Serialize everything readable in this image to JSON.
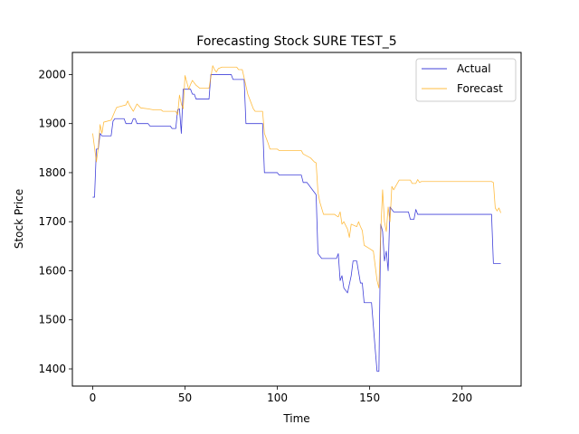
{
  "chart_data": {
    "type": "line",
    "title": "Forecasting Stock SURE TEST_5",
    "xlabel": "Time",
    "ylabel": "Stock Price",
    "xlim": [
      -11,
      232
    ],
    "ylim": [
      1365,
      2045
    ],
    "xticks": [
      0,
      50,
      100,
      150,
      200
    ],
    "yticks": [
      1400,
      1500,
      1600,
      1700,
      1800,
      1900,
      2000
    ],
    "grid": false,
    "legend": "top-right",
    "series": [
      {
        "name": "Actual",
        "color": "#0000cc",
        "points": [
          [
            0,
            1750
          ],
          [
            1,
            1750
          ],
          [
            2,
            1848
          ],
          [
            3,
            1848
          ],
          [
            4,
            1880
          ],
          [
            5,
            1875
          ],
          [
            7,
            1875
          ],
          [
            10,
            1875
          ],
          [
            11,
            1905
          ],
          [
            12,
            1910
          ],
          [
            17,
            1910
          ],
          [
            18,
            1900
          ],
          [
            21,
            1900
          ],
          [
            22,
            1910
          ],
          [
            23,
            1910
          ],
          [
            24,
            1900
          ],
          [
            30,
            1900
          ],
          [
            31,
            1895
          ],
          [
            42,
            1895
          ],
          [
            43,
            1890
          ],
          [
            45,
            1890
          ],
          [
            46,
            1928
          ],
          [
            47,
            1930
          ],
          [
            48,
            1880
          ],
          [
            49,
            1970
          ],
          [
            53,
            1970
          ],
          [
            54,
            1960
          ],
          [
            55,
            1960
          ],
          [
            56,
            1950
          ],
          [
            63,
            1950
          ],
          [
            64,
            2000
          ],
          [
            75,
            2000
          ],
          [
            76,
            1990
          ],
          [
            82,
            1990
          ],
          [
            83,
            1900
          ],
          [
            92,
            1900
          ],
          [
            93,
            1800
          ],
          [
            100,
            1800
          ],
          [
            101,
            1795
          ],
          [
            113,
            1795
          ],
          [
            114,
            1780
          ],
          [
            116,
            1780
          ],
          [
            121,
            1755
          ],
          [
            122,
            1635
          ],
          [
            124,
            1625
          ],
          [
            132,
            1625
          ],
          [
            133,
            1635
          ],
          [
            134,
            1580
          ],
          [
            135,
            1590
          ],
          [
            136,
            1565
          ],
          [
            138,
            1555
          ],
          [
            140,
            1590
          ],
          [
            141,
            1620
          ],
          [
            143,
            1620
          ],
          [
            145,
            1575
          ],
          [
            146,
            1575
          ],
          [
            147,
            1535
          ],
          [
            151,
            1535
          ],
          [
            153,
            1440
          ],
          [
            154,
            1395
          ],
          [
            155,
            1395
          ],
          [
            156,
            1695
          ],
          [
            157,
            1680
          ],
          [
            158,
            1620
          ],
          [
            159,
            1640
          ],
          [
            160,
            1600
          ],
          [
            161,
            1730
          ],
          [
            163,
            1720
          ],
          [
            171,
            1720
          ],
          [
            172,
            1705
          ],
          [
            174,
            1705
          ],
          [
            175,
            1725
          ],
          [
            176,
            1715
          ],
          [
            216,
            1715
          ],
          [
            217,
            1615
          ],
          [
            221,
            1615
          ]
        ]
      },
      {
        "name": "Forecast",
        "color": "#ffa500",
        "points": [
          [
            0,
            1880
          ],
          [
            2,
            1822
          ],
          [
            3,
            1850
          ],
          [
            4,
            1898
          ],
          [
            5,
            1880
          ],
          [
            6,
            1903
          ],
          [
            10,
            1907
          ],
          [
            12,
            1925
          ],
          [
            13,
            1933
          ],
          [
            16,
            1936
          ],
          [
            18,
            1938
          ],
          [
            19,
            1946
          ],
          [
            20,
            1937
          ],
          [
            22,
            1925
          ],
          [
            24,
            1940
          ],
          [
            26,
            1932
          ],
          [
            30,
            1930
          ],
          [
            33,
            1928
          ],
          [
            37,
            1928
          ],
          [
            38,
            1925
          ],
          [
            45,
            1925
          ],
          [
            46,
            1918
          ],
          [
            47,
            1958
          ],
          [
            48,
            1940
          ],
          [
            49,
            1930
          ],
          [
            50,
            1998
          ],
          [
            52,
            1970
          ],
          [
            53,
            1980
          ],
          [
            54,
            1988
          ],
          [
            56,
            1978
          ],
          [
            58,
            1972
          ],
          [
            63,
            1972
          ],
          [
            65,
            2018
          ],
          [
            66,
            2010
          ],
          [
            67,
            2005
          ],
          [
            68,
            2012
          ],
          [
            70,
            2015
          ],
          [
            78,
            2015
          ],
          [
            79,
            2010
          ],
          [
            81,
            2010
          ],
          [
            84,
            1960
          ],
          [
            85,
            1950
          ],
          [
            87,
            1930
          ],
          [
            88,
            1925
          ],
          [
            92,
            1925
          ],
          [
            93,
            1880
          ],
          [
            95,
            1860
          ],
          [
            96,
            1848
          ],
          [
            100,
            1848
          ],
          [
            101,
            1845
          ],
          [
            113,
            1845
          ],
          [
            114,
            1838
          ],
          [
            118,
            1830
          ],
          [
            120,
            1822
          ],
          [
            121,
            1820
          ],
          [
            122,
            1760
          ],
          [
            123,
            1740
          ],
          [
            125,
            1715
          ],
          [
            131,
            1715
          ],
          [
            132,
            1712
          ],
          [
            133,
            1710
          ],
          [
            134,
            1720
          ],
          [
            135,
            1695
          ],
          [
            136,
            1700
          ],
          [
            138,
            1685
          ],
          [
            139,
            1668
          ],
          [
            140,
            1695
          ],
          [
            143,
            1690
          ],
          [
            144,
            1700
          ],
          [
            145,
            1690
          ],
          [
            146,
            1682
          ],
          [
            147,
            1652
          ],
          [
            150,
            1645
          ],
          [
            152,
            1640
          ],
          [
            153,
            1610
          ],
          [
            154,
            1580
          ],
          [
            155,
            1565
          ],
          [
            156,
            1680
          ],
          [
            157,
            1765
          ],
          [
            158,
            1700
          ],
          [
            159,
            1680
          ],
          [
            160,
            1730
          ],
          [
            161,
            1700
          ],
          [
            162,
            1772
          ],
          [
            163,
            1765
          ],
          [
            166,
            1785
          ],
          [
            172,
            1785
          ],
          [
            173,
            1778
          ],
          [
            175,
            1778
          ],
          [
            176,
            1786
          ],
          [
            177,
            1780
          ],
          [
            178,
            1782
          ],
          [
            179,
            1782
          ],
          [
            216,
            1782
          ],
          [
            217,
            1780
          ],
          [
            218,
            1728
          ],
          [
            219,
            1722
          ],
          [
            220,
            1728
          ],
          [
            221,
            1718
          ]
        ]
      }
    ]
  }
}
